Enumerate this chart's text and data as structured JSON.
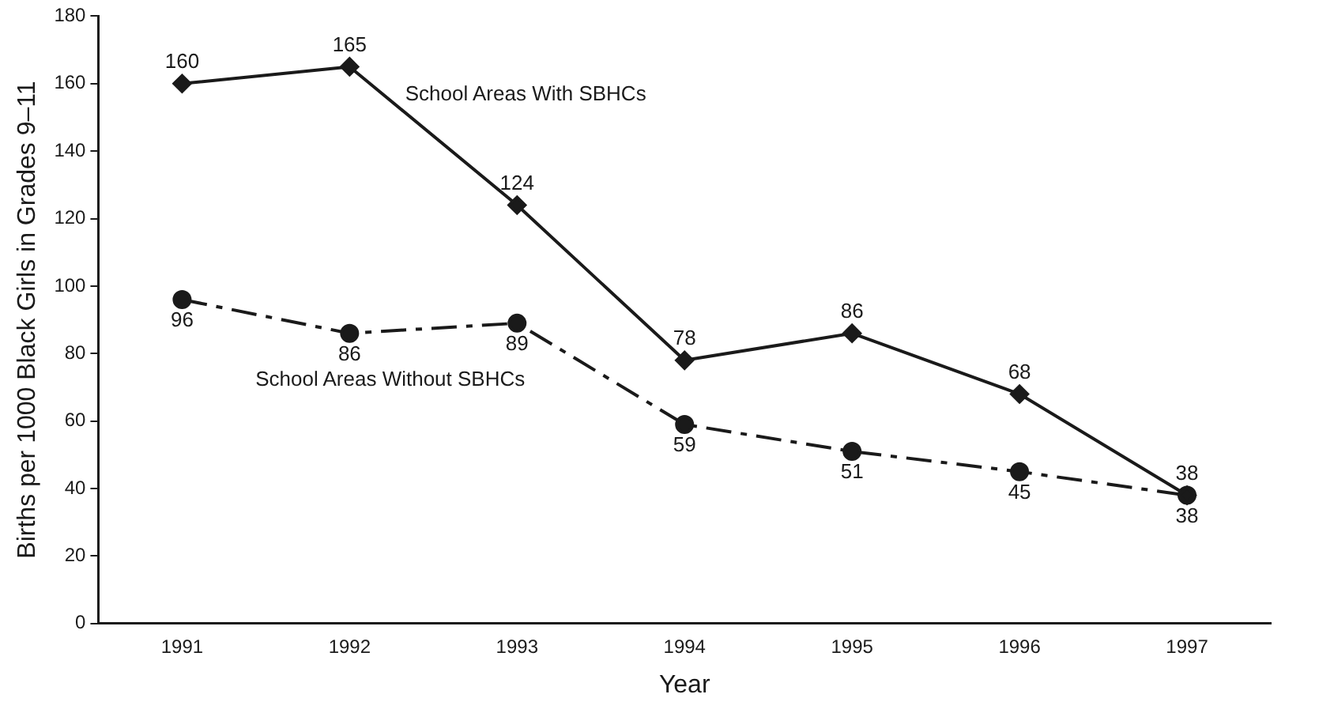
{
  "chart_data": {
    "type": "line",
    "xlabel": "Year",
    "ylabel": "Births per 1000 Black Girls in Grades 9–11",
    "categories": [
      "1991",
      "1992",
      "1993",
      "1994",
      "1995",
      "1996",
      "1997"
    ],
    "series": [
      {
        "name": "School Areas With SBHCs",
        "color": "#1a1a1a",
        "values": [
          160,
          165,
          124,
          78,
          86,
          68,
          38
        ],
        "marker": "diamond",
        "line_style": "solid"
      },
      {
        "name": "School Areas Without SBHCs",
        "color": "#1a1a1a",
        "values": [
          96,
          86,
          89,
          59,
          51,
          45,
          38
        ],
        "marker": "circle",
        "line_style": "dashed"
      }
    ],
    "ylim": [
      0,
      180
    ],
    "yticks": [
      0,
      20,
      40,
      60,
      80,
      100,
      120,
      140,
      160,
      180
    ],
    "grid": false,
    "legend": false,
    "data_labels": true
  }
}
